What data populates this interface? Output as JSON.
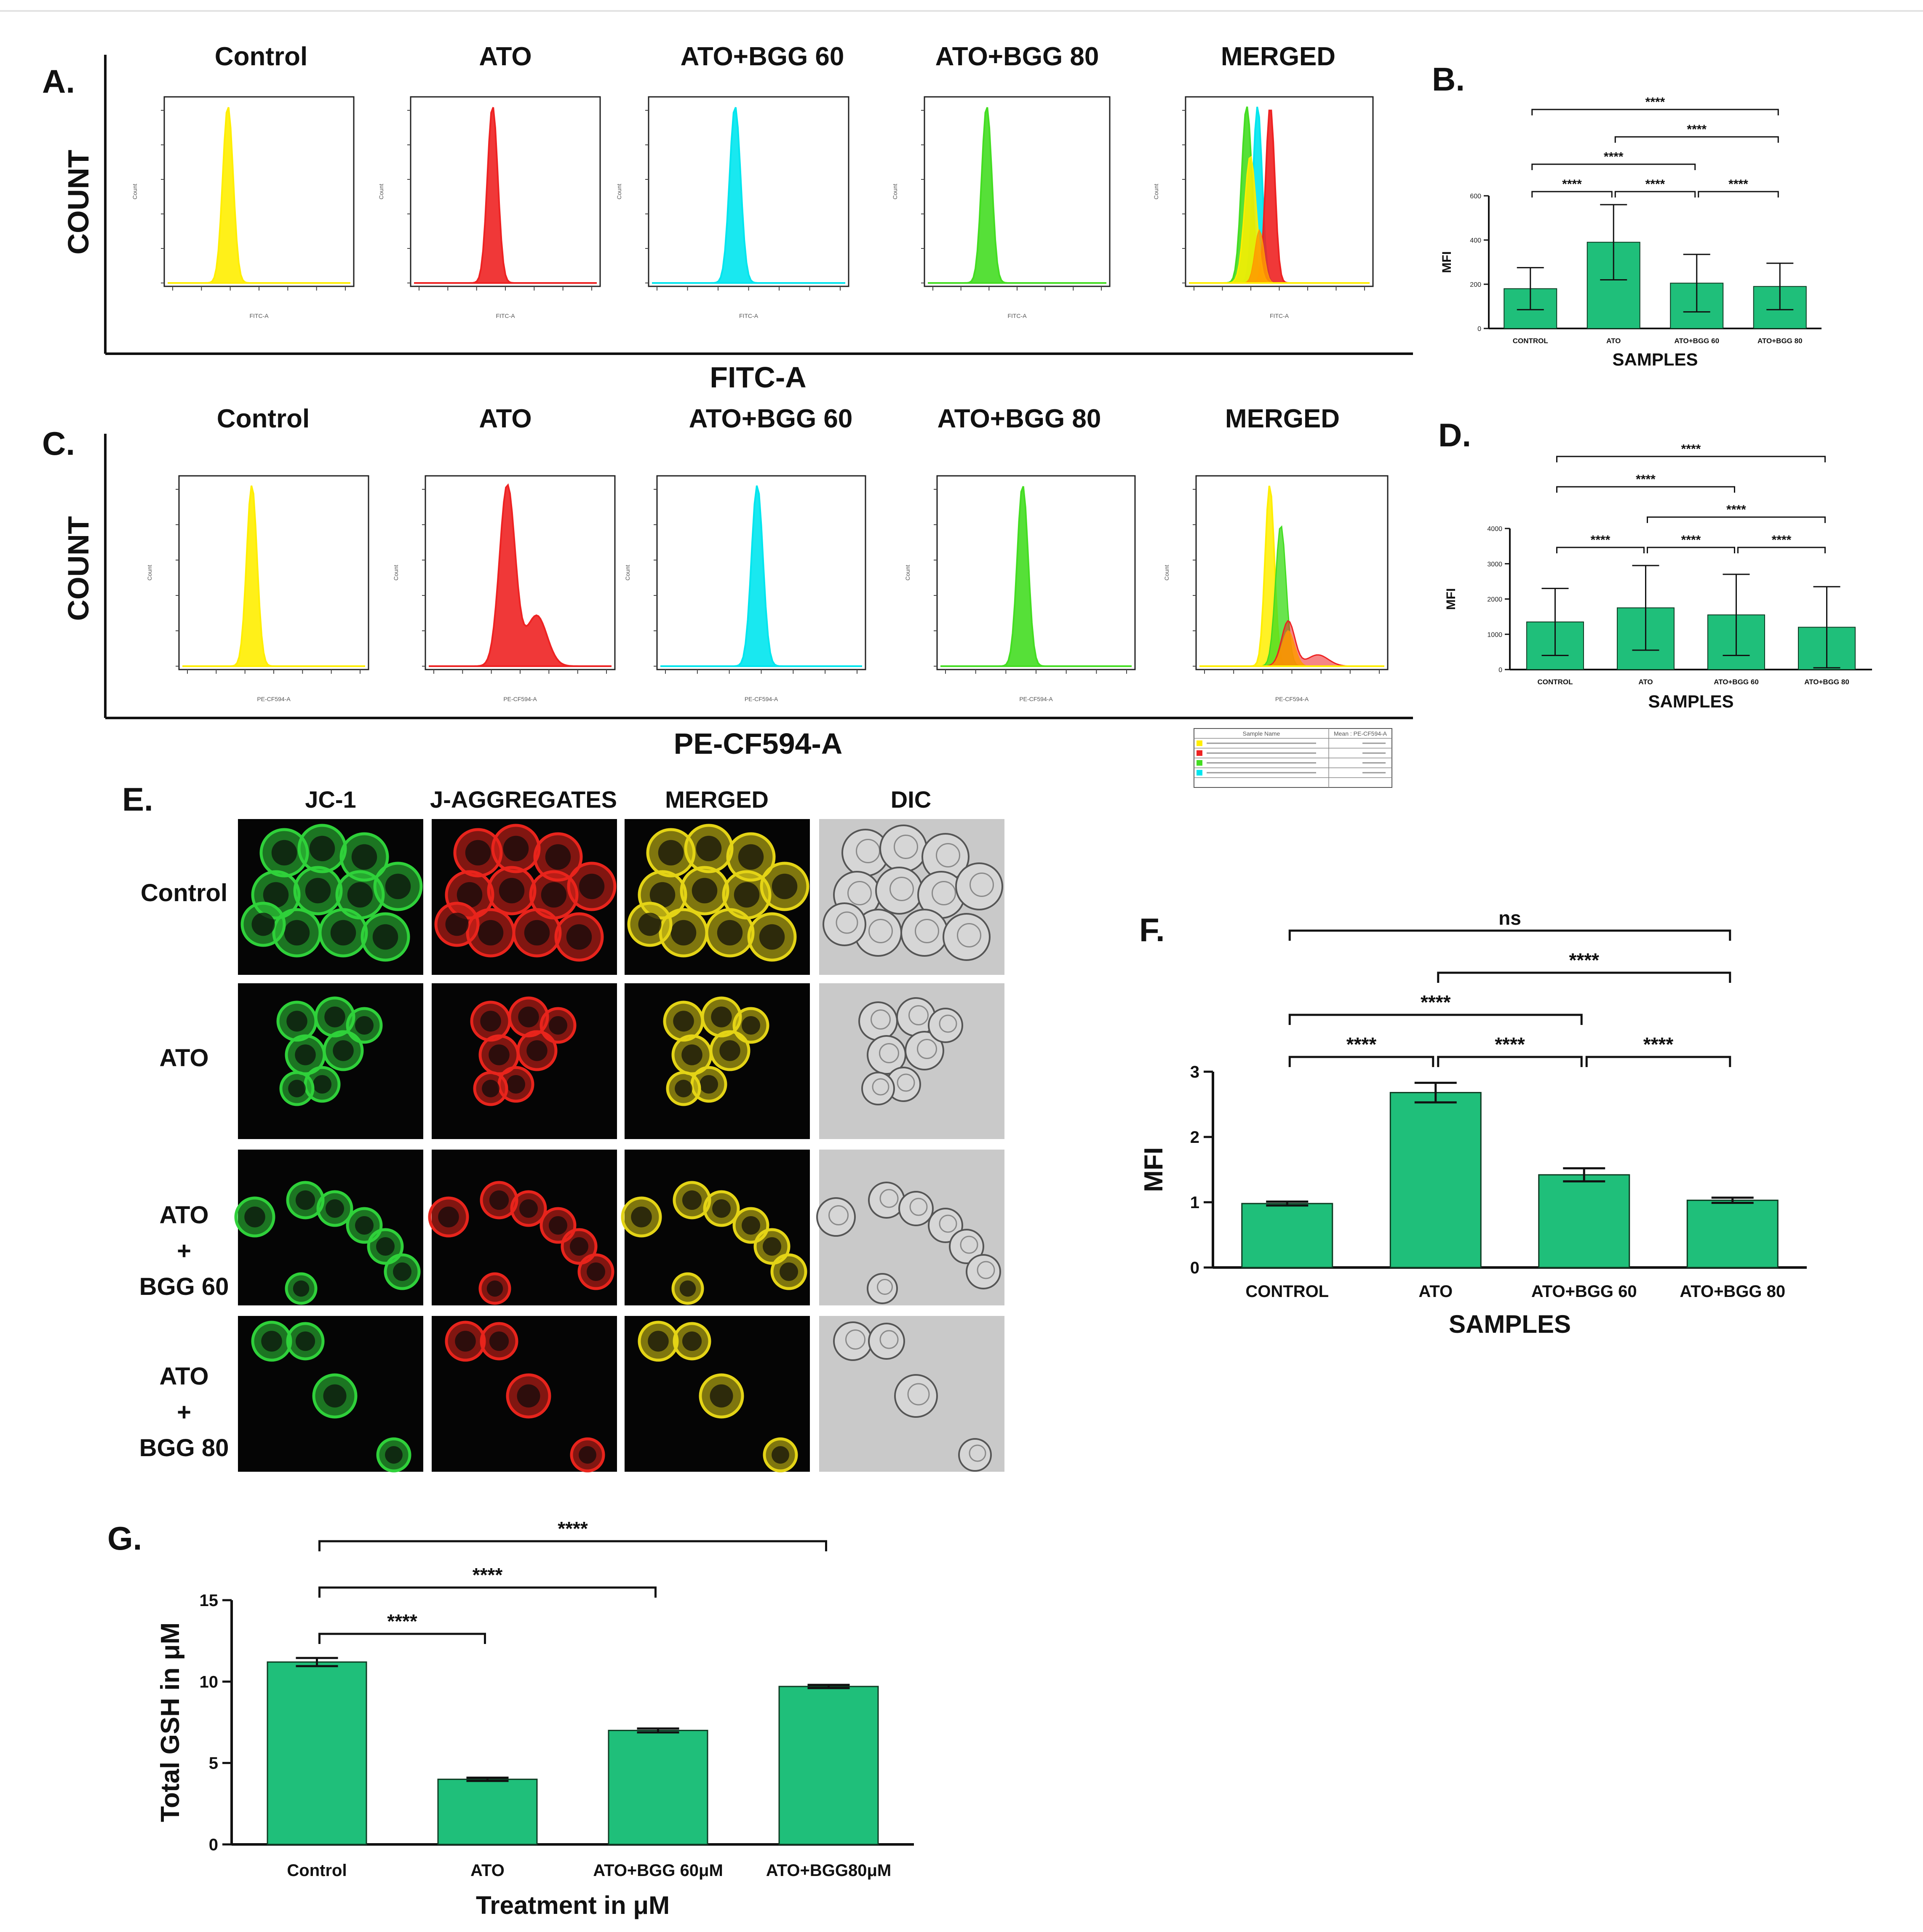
{
  "colors": {
    "bar": "#1fbf7a",
    "bar_stroke": "#0d3b22",
    "yellow": "#ffee00",
    "red": "#ee2222",
    "cyan": "#00e5ee",
    "green": "#44dd22",
    "orange": "#ff9900"
  },
  "histograms": [
    {
      "panel_letter": "A.",
      "axis_title": "FITC-A",
      "count_label": "COUNT",
      "small_y_label": "Count",
      "small_x_label": "FITC-A",
      "panels": [
        {
          "title": "Control",
          "hist": "yellow",
          "peak": 0.33
        },
        {
          "title": "ATO",
          "hist": "red",
          "peak": 0.43
        },
        {
          "title": "ATO+BGG 60",
          "hist": "cyan",
          "peak": 0.43
        },
        {
          "title": "ATO+BGG 80",
          "hist": "green",
          "peak": 0.33
        },
        {
          "title": "MERGED",
          "hist": "merged"
        }
      ]
    },
    {
      "panel_letter": "C.",
      "axis_title": "PE-CF594-A",
      "count_label": "COUNT",
      "small_y_label": "Count",
      "small_x_label": "PE-CF594-A",
      "panels": [
        {
          "title": "Control",
          "hist": "yellow",
          "peak": 0.38
        },
        {
          "title": "ATO",
          "hist": "red",
          "peak": 0.43
        },
        {
          "title": "ATO+BGG 60",
          "hist": "cyan",
          "peak": 0.48
        },
        {
          "title": "ATO+BGG 80",
          "hist": "green",
          "peak": 0.43
        },
        {
          "title": "MERGED",
          "hist": "merged"
        }
      ],
      "legend_headers": [
        "Sample Name",
        "Mean : PE-CF594-A"
      ]
    }
  ],
  "chart_data": [
    {
      "type": "bar",
      "panel_letter": "B.",
      "categories": [
        "CONTROL",
        "ATO",
        "ATO+BGG 60",
        "ATO+BGG 80"
      ],
      "values": [
        180,
        390,
        205,
        190
      ],
      "errors": [
        95,
        170,
        130,
        105
      ],
      "ylim": [
        0,
        600
      ],
      "yticks": [
        0,
        200,
        400,
        600
      ],
      "xlabel": "SAMPLES",
      "ylabel": "MFI",
      "grid": false,
      "significance": [
        {
          "from": 0,
          "to": 1,
          "label": "****"
        },
        {
          "from": 1,
          "to": 2,
          "label": "****"
        },
        {
          "from": 2,
          "to": 3,
          "label": "****"
        },
        {
          "from": 0,
          "to": 2,
          "label": "****"
        },
        {
          "from": 1,
          "to": 3,
          "label": "****"
        },
        {
          "from": 0,
          "to": 3,
          "label": "****"
        }
      ]
    },
    {
      "type": "bar",
      "panel_letter": "D.",
      "categories": [
        "CONTROL",
        "ATO",
        "ATO+BGG 60",
        "ATO+BGG 80"
      ],
      "values": [
        1350,
        1750,
        1550,
        1200
      ],
      "errors": [
        950,
        1200,
        1150,
        1150
      ],
      "ylim": [
        0,
        4000
      ],
      "yticks": [
        0,
        1000,
        2000,
        3000,
        4000
      ],
      "xlabel": "SAMPLES",
      "ylabel": "MFI",
      "grid": false,
      "significance": [
        {
          "from": 0,
          "to": 1,
          "label": "****"
        },
        {
          "from": 1,
          "to": 2,
          "label": "****"
        },
        {
          "from": 2,
          "to": 3,
          "label": "****"
        },
        {
          "from": 1,
          "to": 3,
          "label": "****"
        },
        {
          "from": 0,
          "to": 2,
          "label": "****"
        },
        {
          "from": 0,
          "to": 3,
          "label": "****"
        }
      ]
    },
    {
      "type": "bar",
      "panel_letter": "F.",
      "categories": [
        "CONTROL",
        "ATO",
        "ATO+BGG 60",
        "ATO+BGG 80"
      ],
      "values": [
        0.98,
        2.68,
        1.42,
        1.03
      ],
      "errors": [
        0.03,
        0.15,
        0.1,
        0.04
      ],
      "ylim": [
        0,
        3
      ],
      "yticks": [
        0,
        1,
        2,
        3
      ],
      "xlabel": "SAMPLES",
      "ylabel": "MFI",
      "grid": false,
      "significance": [
        {
          "from": 0,
          "to": 1,
          "label": "****"
        },
        {
          "from": 1,
          "to": 2,
          "label": "****"
        },
        {
          "from": 2,
          "to": 3,
          "label": "****"
        },
        {
          "from": 0,
          "to": 2,
          "label": "****"
        },
        {
          "from": 1,
          "to": 3,
          "label": "****"
        },
        {
          "from": 0,
          "to": 3,
          "label": "ns"
        }
      ]
    },
    {
      "type": "bar",
      "panel_letter": "G.",
      "categories": [
        "Control",
        "ATO",
        "ATO+BGG 60μM",
        "ATO+BGG80μM"
      ],
      "values": [
        11.2,
        4.0,
        7.0,
        9.7
      ],
      "errors": [
        0.25,
        0.1,
        0.12,
        0.1
      ],
      "ylim": [
        0,
        15
      ],
      "yticks": [
        0,
        5,
        10,
        15
      ],
      "xlabel": "Treatment in μM",
      "ylabel": "Total GSH in μM",
      "grid": false,
      "significance": [
        {
          "from": 0,
          "to": 1,
          "label": "****"
        },
        {
          "from": 0,
          "to": 2,
          "label": "****"
        },
        {
          "from": 0,
          "to": 3,
          "label": "****"
        }
      ]
    }
  ],
  "microscopy": {
    "panel_letter": "E.",
    "columns": [
      "JC-1",
      "J-AGGREGATES",
      "MERGED",
      "DIC"
    ],
    "rows": [
      [
        "Control"
      ],
      [
        "ATO"
      ],
      [
        "ATO",
        "+",
        "BGG 60"
      ],
      [
        "ATO",
        "+",
        "BGG 80"
      ]
    ]
  }
}
